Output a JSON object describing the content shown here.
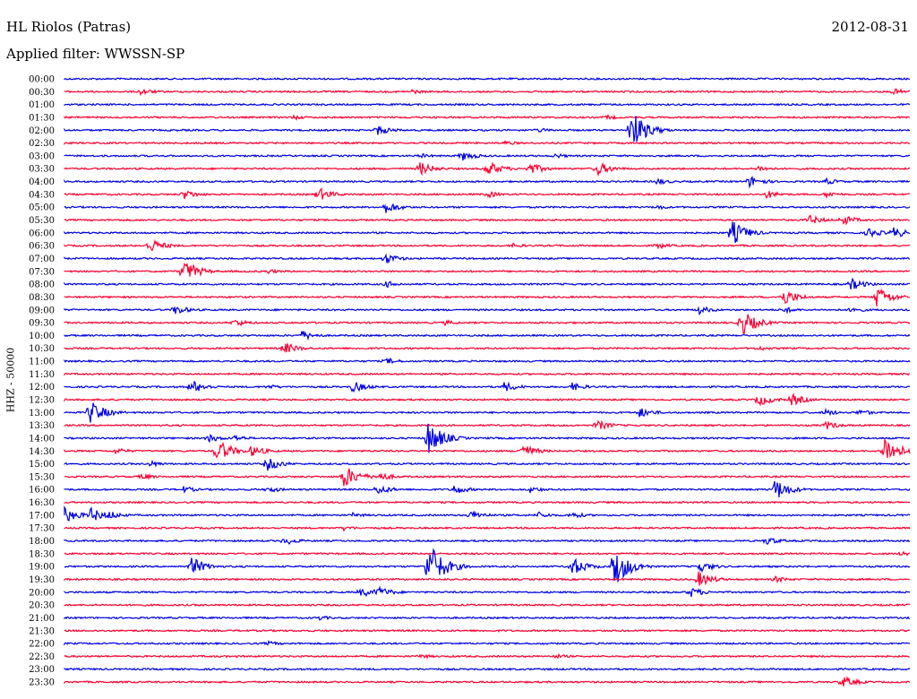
{
  "header": {
    "station": "HL Riolos (Patras)",
    "date": "2012-08-31",
    "filter_label": "Applied filter: WWSSN-SP"
  },
  "colors": {
    "trace_a": "#0000e6",
    "trace_b": "#ff0033",
    "background": "#ffffff",
    "text": "#000000"
  },
  "chart_data": {
    "type": "line",
    "title": "",
    "ylabel": "HHZ - 50000",
    "xlabel": "",
    "grid": false,
    "rows": [
      {
        "time": "00:00",
        "color": "blue",
        "events": []
      },
      {
        "time": "00:30",
        "color": "red",
        "events": [
          [
            0.09,
            4
          ],
          [
            0.41,
            3
          ],
          [
            0.98,
            4
          ]
        ]
      },
      {
        "time": "01:00",
        "color": "blue",
        "events": []
      },
      {
        "time": "01:30",
        "color": "red",
        "events": [
          [
            0.27,
            3
          ],
          [
            0.64,
            3
          ]
        ]
      },
      {
        "time": "02:00",
        "color": "blue",
        "events": [
          [
            0.37,
            6
          ],
          [
            0.67,
            24
          ],
          [
            0.56,
            3
          ]
        ]
      },
      {
        "time": "02:30",
        "color": "red",
        "events": [
          [
            0.52,
            3
          ]
        ]
      },
      {
        "time": "03:00",
        "color": "blue",
        "events": [
          [
            0.47,
            6
          ],
          [
            0.42,
            3
          ],
          [
            0.58,
            3
          ]
        ]
      },
      {
        "time": "03:30",
        "color": "red",
        "events": [
          [
            0.42,
            8
          ],
          [
            0.5,
            9
          ],
          [
            0.55,
            7
          ],
          [
            0.63,
            8
          ],
          [
            0.82,
            4
          ]
        ]
      },
      {
        "time": "04:00",
        "color": "blue",
        "events": [
          [
            0.7,
            4
          ],
          [
            0.81,
            7
          ],
          [
            0.9,
            4
          ]
        ]
      },
      {
        "time": "04:30",
        "color": "red",
        "events": [
          [
            0.14,
            6
          ],
          [
            0.3,
            8
          ],
          [
            0.5,
            4
          ],
          [
            0.83,
            5
          ],
          [
            0.9,
            4
          ]
        ]
      },
      {
        "time": "05:00",
        "color": "blue",
        "events": [
          [
            0.38,
            7
          ],
          [
            0.7,
            3
          ]
        ]
      },
      {
        "time": "05:30",
        "color": "red",
        "events": [
          [
            0.88,
            6
          ],
          [
            0.92,
            6
          ]
        ]
      },
      {
        "time": "06:00",
        "color": "blue",
        "events": [
          [
            0.79,
            14
          ],
          [
            0.95,
            6
          ],
          [
            0.98,
            7
          ]
        ]
      },
      {
        "time": "06:30",
        "color": "red",
        "events": [
          [
            0.1,
            9
          ],
          [
            0.53,
            3
          ],
          [
            0.7,
            4
          ]
        ]
      },
      {
        "time": "07:00",
        "color": "blue",
        "events": [
          [
            0.38,
            6
          ]
        ]
      },
      {
        "time": "07:30",
        "color": "red",
        "events": [
          [
            0.14,
            14
          ],
          [
            0.24,
            3
          ]
        ]
      },
      {
        "time": "08:00",
        "color": "blue",
        "events": [
          [
            0.38,
            4
          ],
          [
            0.93,
            7
          ]
        ]
      },
      {
        "time": "08:30",
        "color": "red",
        "events": [
          [
            0.85,
            10
          ],
          [
            0.96,
            13
          ]
        ]
      },
      {
        "time": "09:00",
        "color": "blue",
        "events": [
          [
            0.13,
            6
          ],
          [
            0.75,
            5
          ],
          [
            0.85,
            4
          ],
          [
            0.93,
            4
          ]
        ]
      },
      {
        "time": "09:30",
        "color": "red",
        "events": [
          [
            0.2,
            5
          ],
          [
            0.8,
            16
          ],
          [
            0.45,
            3
          ]
        ]
      },
      {
        "time": "10:00",
        "color": "blue",
        "events": [
          [
            0.28,
            6
          ]
        ]
      },
      {
        "time": "10:30",
        "color": "red",
        "events": [
          [
            0.26,
            7
          ],
          [
            0.82,
            3
          ]
        ]
      },
      {
        "time": "11:00",
        "color": "blue",
        "events": [
          [
            0.38,
            4
          ]
        ]
      },
      {
        "time": "11:30",
        "color": "red",
        "events": []
      },
      {
        "time": "12:00",
        "color": "blue",
        "events": [
          [
            0.15,
            8
          ],
          [
            0.34,
            7
          ],
          [
            0.52,
            6
          ],
          [
            0.6,
            5
          ],
          [
            0.24,
            3
          ]
        ]
      },
      {
        "time": "12:30",
        "color": "red",
        "events": [
          [
            0.82,
            8
          ],
          [
            0.86,
            7
          ]
        ]
      },
      {
        "time": "13:00",
        "color": "blue",
        "events": [
          [
            0.03,
            14
          ],
          [
            0.68,
            6
          ],
          [
            0.9,
            4
          ],
          [
            0.94,
            4
          ]
        ]
      },
      {
        "time": "13:30",
        "color": "red",
        "events": [
          [
            0.63,
            6
          ],
          [
            0.9,
            5
          ]
        ]
      },
      {
        "time": "14:00",
        "color": "blue",
        "events": [
          [
            0.43,
            20
          ],
          [
            0.17,
            5
          ],
          [
            0.2,
            4
          ]
        ]
      },
      {
        "time": "14:30",
        "color": "red",
        "events": [
          [
            0.18,
            14
          ],
          [
            0.22,
            7
          ],
          [
            0.54,
            9
          ],
          [
            0.97,
            18
          ],
          [
            0.06,
            4
          ]
        ]
      },
      {
        "time": "15:00",
        "color": "blue",
        "events": [
          [
            0.24,
            8
          ],
          [
            0.1,
            4
          ]
        ]
      },
      {
        "time": "15:30",
        "color": "red",
        "events": [
          [
            0.33,
            14
          ],
          [
            0.37,
            6
          ],
          [
            0.09,
            4
          ]
        ]
      },
      {
        "time": "16:00",
        "color": "blue",
        "events": [
          [
            0.37,
            6
          ],
          [
            0.46,
            6
          ],
          [
            0.84,
            13
          ],
          [
            0.14,
            4
          ],
          [
            0.24,
            4
          ],
          [
            0.55,
            4
          ]
        ]
      },
      {
        "time": "16:30",
        "color": "red",
        "events": []
      },
      {
        "time": "17:00",
        "color": "blue",
        "events": [
          [
            0.0,
            9
          ],
          [
            0.03,
            9
          ],
          [
            0.05,
            6
          ],
          [
            0.48,
            6
          ],
          [
            0.34,
            3
          ],
          [
            0.56,
            4
          ],
          [
            0.6,
            4
          ]
        ]
      },
      {
        "time": "17:30",
        "color": "red",
        "events": [
          [
            0.33,
            3
          ]
        ]
      },
      {
        "time": "18:00",
        "color": "blue",
        "events": [
          [
            0.26,
            5
          ],
          [
            0.83,
            5
          ]
        ]
      },
      {
        "time": "18:30",
        "color": "red",
        "events": [
          [
            0.99,
            4
          ]
        ]
      },
      {
        "time": "19:00",
        "color": "blue",
        "events": [
          [
            0.15,
            11
          ],
          [
            0.43,
            30
          ],
          [
            0.6,
            11
          ],
          [
            0.65,
            24
          ],
          [
            0.75,
            7
          ]
        ]
      },
      {
        "time": "19:30",
        "color": "red",
        "events": [
          [
            0.75,
            9
          ],
          [
            0.84,
            4
          ]
        ]
      },
      {
        "time": "20:00",
        "color": "blue",
        "events": [
          [
            0.35,
            6
          ],
          [
            0.37,
            7
          ],
          [
            0.74,
            6
          ]
        ]
      },
      {
        "time": "20:30",
        "color": "red",
        "events": []
      },
      {
        "time": "21:00",
        "color": "blue",
        "events": [
          [
            0.3,
            3
          ]
        ]
      },
      {
        "time": "21:30",
        "color": "red",
        "events": []
      },
      {
        "time": "22:00",
        "color": "blue",
        "events": [
          [
            0.24,
            3
          ]
        ]
      },
      {
        "time": "22:30",
        "color": "red",
        "events": [
          [
            0.42,
            3
          ],
          [
            0.58,
            3
          ]
        ]
      },
      {
        "time": "23:00",
        "color": "blue",
        "events": []
      },
      {
        "time": "23:30",
        "color": "red",
        "events": [
          [
            0.92,
            7
          ]
        ]
      }
    ]
  }
}
